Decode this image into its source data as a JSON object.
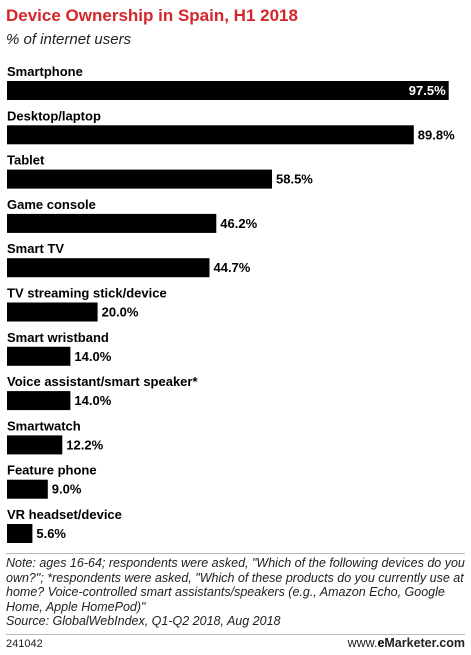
{
  "title": "Device Ownership in Spain, H1 2018",
  "subtitle": "% of internet users",
  "chart_data": {
    "type": "bar",
    "orientation": "horizontal",
    "title": "Device Ownership in Spain, H1 2018",
    "subtitle": "% of internet users",
    "unit": "%",
    "xlim": [
      0,
      100
    ],
    "grid": false,
    "bar_color": "#000000",
    "categories": [
      "Smartphone",
      "Desktop/laptop",
      "Tablet",
      "Game console",
      "Smart TV",
      "TV streaming stick/device",
      "Smart wristband",
      "Voice assistant/smart speaker*",
      "Smartwatch",
      "Feature phone",
      "VR headset/device"
    ],
    "values": [
      97.5,
      89.8,
      58.5,
      46.2,
      44.7,
      20.0,
      14.0,
      14.0,
      12.2,
      9.0,
      5.6
    ],
    "value_labels": [
      "97.5%",
      "89.8%",
      "58.5%",
      "46.2%",
      "44.7%",
      "20.0%",
      "14.0%",
      "14.0%",
      "12.2%",
      "9.0%",
      "5.6%"
    ]
  },
  "notes": {
    "note": "Note: ages 16-64; respondents were asked, \"Which of the following devices do you own?\"; *respondents were asked, \"Which of these products do you currently use at home? Voice-controlled smart assistants/speakers (e.g., Amazon Echo, Google Home, Apple HomePod)\"",
    "source": "Source: GlobalWebIndex, Q1-Q2 2018, Aug 2018"
  },
  "footer": {
    "chart_id": "241042",
    "brand_prefix": "www.",
    "brand_e": "e",
    "brand_suffix": "Marketer.com"
  }
}
